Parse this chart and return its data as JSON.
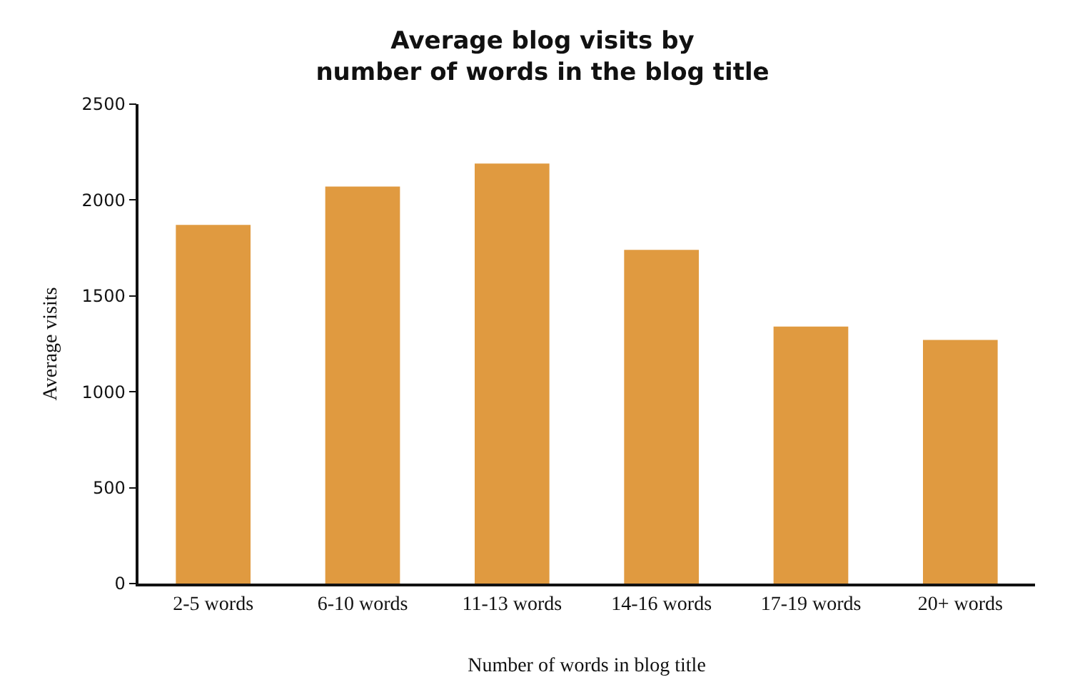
{
  "chart_data": {
    "type": "bar",
    "title": "Average blog visits by\nnumber of words in the blog title",
    "xlabel": "Number of words in blog title",
    "ylabel": "Average visits",
    "categories": [
      "2-5 words",
      "6-10 words",
      "11-13 words",
      "14-16 words",
      "17-19 words",
      "20+ words"
    ],
    "values": [
      1870,
      2070,
      2190,
      1740,
      1340,
      1270
    ],
    "color": "#e09a40",
    "ylim": [
      0,
      2500
    ],
    "yticks": [
      0,
      500,
      1000,
      1500,
      2000,
      2500
    ],
    "grid": false
  }
}
